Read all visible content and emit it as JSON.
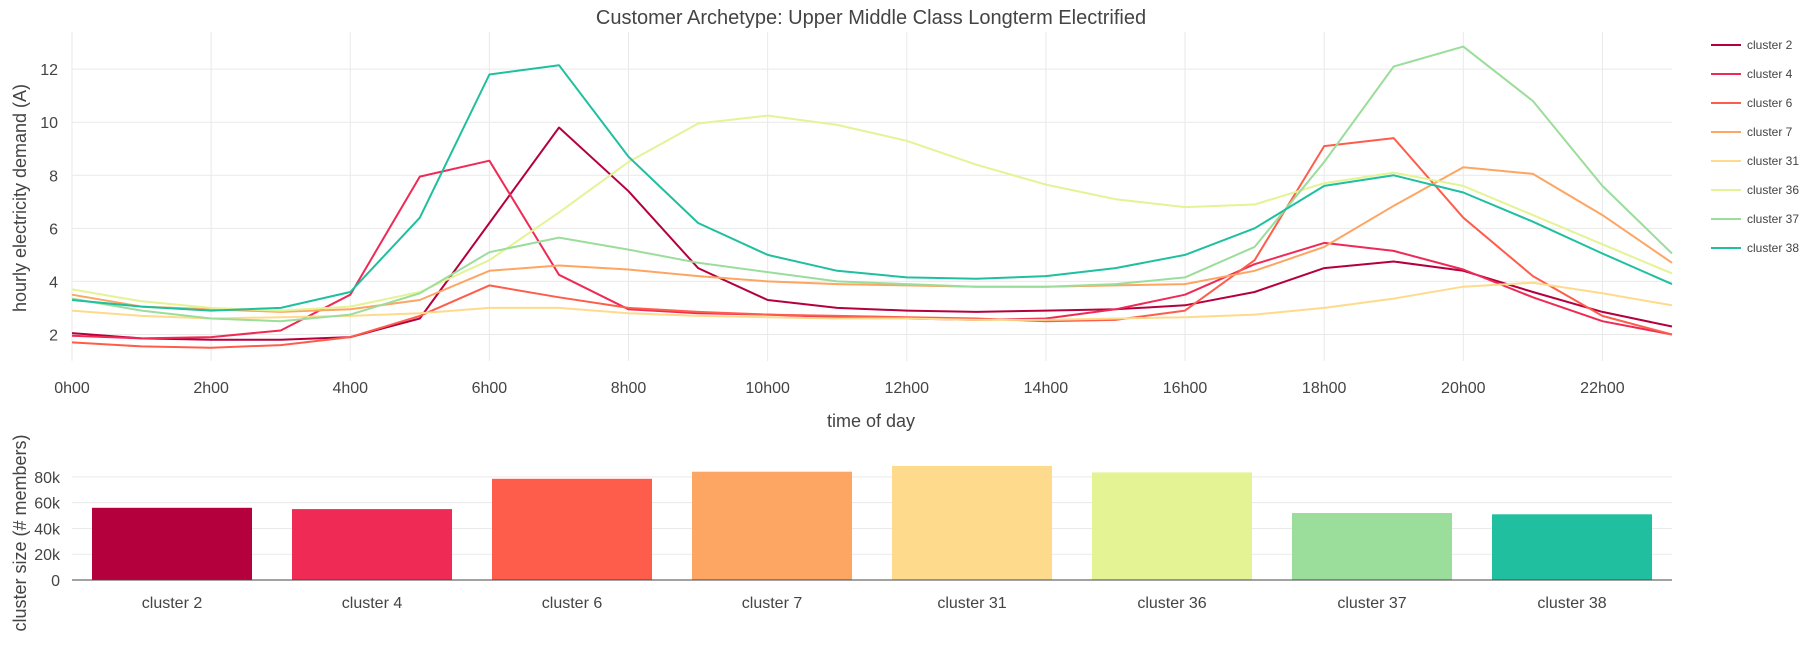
{
  "chart_data": [
    {
      "type": "line",
      "title": "Customer Archetype: Upper Middle Class Longterm Electrified",
      "xlabel": "time of day",
      "ylabel": "hourly electricity demand (A)",
      "x": [
        0,
        1,
        2,
        3,
        4,
        5,
        6,
        7,
        8,
        9,
        10,
        11,
        12,
        13,
        14,
        15,
        16,
        17,
        18,
        19,
        20,
        21,
        22,
        23
      ],
      "x_ticks": [
        0,
        2,
        4,
        6,
        8,
        10,
        12,
        14,
        16,
        18,
        20,
        22
      ],
      "x_tick_labels": [
        "0h00",
        "2h00",
        "4h00",
        "6h00",
        "8h00",
        "10h00",
        "12h00",
        "14h00",
        "16h00",
        "18h00",
        "20h00",
        "22h00"
      ],
      "xlim": [
        0,
        23
      ],
      "ylim": [
        1,
        13.4
      ],
      "y_ticks": [
        2,
        4,
        6,
        8,
        10,
        12
      ],
      "grid": true,
      "legend_position": "right",
      "series": [
        {
          "name": "cluster 2",
          "color": "#b5003e",
          "values": [
            2.05,
            1.85,
            1.8,
            1.8,
            1.9,
            2.6,
            6.2,
            9.8,
            7.4,
            4.5,
            3.3,
            3.0,
            2.9,
            2.85,
            2.9,
            2.95,
            3.1,
            3.6,
            4.5,
            4.75,
            4.4,
            3.6,
            2.85,
            2.3
          ]
        },
        {
          "name": "cluster 4",
          "color": "#ee2a55",
          "values": [
            1.95,
            1.85,
            1.9,
            2.15,
            3.5,
            7.95,
            8.55,
            4.25,
            2.95,
            2.8,
            2.75,
            2.65,
            2.6,
            2.55,
            2.6,
            2.95,
            3.5,
            4.65,
            5.45,
            5.15,
            4.45,
            3.4,
            2.5,
            2.0
          ]
        },
        {
          "name": "cluster 6",
          "color": "#fe5d4b",
          "values": [
            1.7,
            1.55,
            1.5,
            1.6,
            1.9,
            2.7,
            3.85,
            3.4,
            3.0,
            2.85,
            2.75,
            2.7,
            2.65,
            2.6,
            2.5,
            2.55,
            2.9,
            4.8,
            9.1,
            9.4,
            6.4,
            4.2,
            2.7,
            2.0
          ]
        },
        {
          "name": "cluster 7",
          "color": "#fda562",
          "values": [
            3.5,
            3.05,
            2.95,
            2.85,
            2.95,
            3.3,
            4.4,
            4.6,
            4.45,
            4.2,
            4.0,
            3.9,
            3.85,
            3.8,
            3.8,
            3.85,
            3.9,
            4.4,
            5.3,
            6.85,
            8.3,
            8.05,
            6.5,
            4.7
          ]
        },
        {
          "name": "cluster 31",
          "color": "#fedb8c",
          "values": [
            2.9,
            2.7,
            2.6,
            2.65,
            2.7,
            2.8,
            3.0,
            3.0,
            2.8,
            2.7,
            2.65,
            2.6,
            2.6,
            2.55,
            2.55,
            2.6,
            2.65,
            2.75,
            3.0,
            3.35,
            3.8,
            3.95,
            3.55,
            3.1
          ]
        },
        {
          "name": "cluster 36",
          "color": "#e4f394",
          "values": [
            3.7,
            3.25,
            3.0,
            2.9,
            3.05,
            3.6,
            4.8,
            6.6,
            8.5,
            9.95,
            10.25,
            9.9,
            9.3,
            8.4,
            7.65,
            7.1,
            6.8,
            6.9,
            7.7,
            8.1,
            7.6,
            6.5,
            5.4,
            4.3
          ]
        },
        {
          "name": "cluster 37",
          "color": "#9bdd9b",
          "values": [
            3.35,
            2.9,
            2.6,
            2.5,
            2.75,
            3.55,
            5.1,
            5.65,
            5.2,
            4.7,
            4.35,
            4.0,
            3.9,
            3.8,
            3.8,
            3.9,
            4.15,
            5.3,
            8.5,
            12.1,
            12.85,
            10.8,
            7.6,
            5.05
          ]
        },
        {
          "name": "cluster 38",
          "color": "#1fbf9f",
          "values": [
            3.3,
            3.05,
            2.9,
            3.0,
            3.6,
            6.4,
            11.8,
            12.15,
            8.7,
            6.2,
            5.0,
            4.4,
            4.15,
            4.1,
            4.2,
            4.5,
            5.0,
            6.0,
            7.6,
            8.0,
            7.35,
            6.25,
            5.05,
            3.9
          ]
        }
      ]
    },
    {
      "type": "bar",
      "xlabel": "",
      "ylabel": "cluster size (# members)",
      "categories": [
        "cluster 2",
        "cluster 4",
        "cluster 6",
        "cluster 7",
        "cluster 31",
        "cluster 36",
        "cluster 37",
        "cluster 38"
      ],
      "values": [
        56000,
        55000,
        78500,
        84000,
        88500,
        83500,
        52000,
        51000
      ],
      "colors": [
        "#b5003e",
        "#ee2a55",
        "#fe5d4b",
        "#fda562",
        "#fedb8c",
        "#e4f394",
        "#9bdd9b",
        "#1fbf9f"
      ],
      "ylim": [
        0,
        90000
      ],
      "y_ticks": [
        0,
        20000,
        40000,
        60000,
        80000
      ],
      "y_tick_labels": [
        "0",
        "20k",
        "40k",
        "60k",
        "80k"
      ],
      "grid": true
    }
  ]
}
